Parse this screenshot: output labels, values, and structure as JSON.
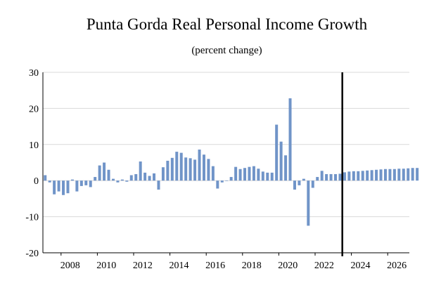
{
  "chart_data": {
    "type": "bar",
    "title": "Punta Gorda Real Personal Income Growth",
    "subtitle": "(percent change)",
    "xlabel": "",
    "ylabel": "",
    "ylim": [
      -20,
      30
    ],
    "yticks": [
      "30",
      "20",
      "10",
      "0",
      "-10",
      "-20"
    ],
    "xticks": [
      "2008",
      "2010",
      "2012",
      "2014",
      "2016",
      "2018",
      "2020",
      "2022",
      "2024",
      "2026"
    ],
    "x_start_quarter": "2007Q1",
    "forecast_divider_year": 2023.5,
    "grid": "horizontal",
    "legend": "none",
    "bar_color": "#7094c8",
    "values": [
      1.5,
      -0.5,
      -3.8,
      -3.0,
      -4.0,
      -3.5,
      0.3,
      -3.0,
      -1.5,
      -1.3,
      -1.8,
      1.0,
      4.2,
      5.0,
      3.0,
      0.5,
      -0.5,
      0.3,
      -0.3,
      1.5,
      1.8,
      5.3,
      2.2,
      1.3,
      2.0,
      -2.5,
      3.7,
      5.5,
      6.3,
      8.0,
      7.7,
      6.4,
      6.2,
      5.8,
      8.6,
      7.2,
      6.0,
      4.0,
      -2.2,
      -0.5,
      0.0,
      1.0,
      3.8,
      3.2,
      3.5,
      3.8,
      4.0,
      3.3,
      2.5,
      2.2,
      2.2,
      15.5,
      10.8,
      7.0,
      22.8,
      -2.5,
      -1.3,
      0.5,
      -12.5,
      -2.0,
      1.0,
      2.7,
      1.8,
      1.8,
      1.8,
      1.9,
      2.3,
      2.5,
      2.6,
      2.6,
      2.7,
      2.8,
      2.9,
      3.0,
      3.1,
      3.2,
      3.2,
      3.2,
      3.3,
      3.3,
      3.4,
      3.5,
      3.5
    ]
  }
}
